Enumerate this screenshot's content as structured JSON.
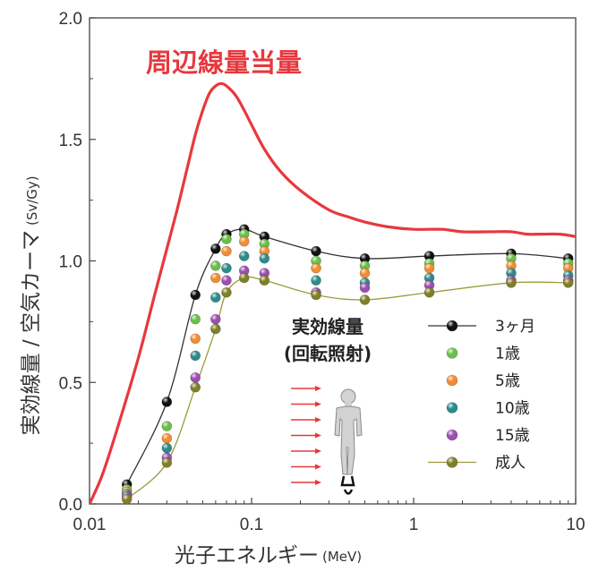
{
  "chart_data": {
    "type": "line",
    "xlabel": "光子エネルギー",
    "xunit": "(MeV)",
    "ylabel": "実効線量 / 空気カーマ",
    "yunit": "(Sv/Gy)",
    "xscale": "log",
    "xlim": [
      0.01,
      10
    ],
    "ylim": [
      0.0,
      2.0
    ],
    "x_ticks": [
      {
        "value": 0.01,
        "label": "0.01"
      },
      {
        "value": 0.1,
        "label": "0.1"
      },
      {
        "value": 1,
        "label": "1"
      },
      {
        "value": 10,
        "label": "10"
      }
    ],
    "y_ticks": [
      {
        "value": 0.0,
        "label": "0.0"
      },
      {
        "value": 0.5,
        "label": "0.5"
      },
      {
        "value": 1.0,
        "label": "1.0"
      },
      {
        "value": 1.5,
        "label": "1.5"
      },
      {
        "value": 2.0,
        "label": "2.0"
      }
    ],
    "grid": false,
    "legend_position": "bottom-right",
    "annotations": {
      "curve_label": "周辺線量当量",
      "irradiation_label_1": "実効線量",
      "irradiation_label_2": "(回転照射)"
    },
    "reference_curve": {
      "name": "周辺線量当量",
      "color": "#e8383d",
      "x": [
        0.01,
        0.012,
        0.015,
        0.02,
        0.025,
        0.03,
        0.035,
        0.04,
        0.045,
        0.05,
        0.055,
        0.06,
        0.065,
        0.07,
        0.08,
        0.09,
        0.1,
        0.12,
        0.15,
        0.2,
        0.3,
        0.4,
        0.5,
        0.7,
        1.0,
        1.5,
        2,
        3,
        4,
        5,
        6,
        8,
        10
      ],
      "y": [
        0.0,
        0.12,
        0.32,
        0.6,
        0.85,
        1.05,
        1.22,
        1.38,
        1.52,
        1.62,
        1.69,
        1.72,
        1.73,
        1.72,
        1.68,
        1.62,
        1.56,
        1.46,
        1.37,
        1.29,
        1.21,
        1.18,
        1.16,
        1.14,
        1.13,
        1.13,
        1.12,
        1.12,
        1.12,
        1.11,
        1.11,
        1.11,
        1.1
      ]
    },
    "x": [
      0.017,
      0.03,
      0.045,
      0.06,
      0.07,
      0.09,
      0.12,
      0.25,
      0.5,
      1.25,
      4,
      9
    ],
    "series": [
      {
        "name": "3ヶ月",
        "color": "#111111",
        "line_color": "#333333",
        "values": [
          0.08,
          0.42,
          0.86,
          1.05,
          1.11,
          1.13,
          1.1,
          1.04,
          1.01,
          1.02,
          1.03,
          1.01
        ]
      },
      {
        "name": "1歳",
        "color": "#6abf4b",
        "values": [
          0.06,
          0.32,
          0.76,
          0.98,
          1.09,
          1.11,
          1.07,
          1.0,
          0.98,
          0.99,
          1.01,
          0.99
        ]
      },
      {
        "name": "5歳",
        "color": "#f08c34",
        "values": [
          0.05,
          0.27,
          0.68,
          0.93,
          1.04,
          1.08,
          1.04,
          0.97,
          0.95,
          0.97,
          0.98,
          0.97
        ]
      },
      {
        "name": "10歳",
        "color": "#2e8b8b",
        "values": [
          0.04,
          0.23,
          0.61,
          0.85,
          0.97,
          1.02,
          1.01,
          0.92,
          0.91,
          0.93,
          0.95,
          0.94
        ]
      },
      {
        "name": "15歳",
        "color": "#9b4fb0",
        "values": [
          0.03,
          0.19,
          0.52,
          0.76,
          0.92,
          0.96,
          0.95,
          0.87,
          0.89,
          0.9,
          0.92,
          0.92
        ]
      },
      {
        "name": "成人",
        "color": "#7f7f2a",
        "line_color": "#9c9c3a",
        "values": [
          0.02,
          0.17,
          0.48,
          0.72,
          0.87,
          0.93,
          0.92,
          0.86,
          0.84,
          0.87,
          0.91,
          0.91
        ]
      }
    ]
  }
}
